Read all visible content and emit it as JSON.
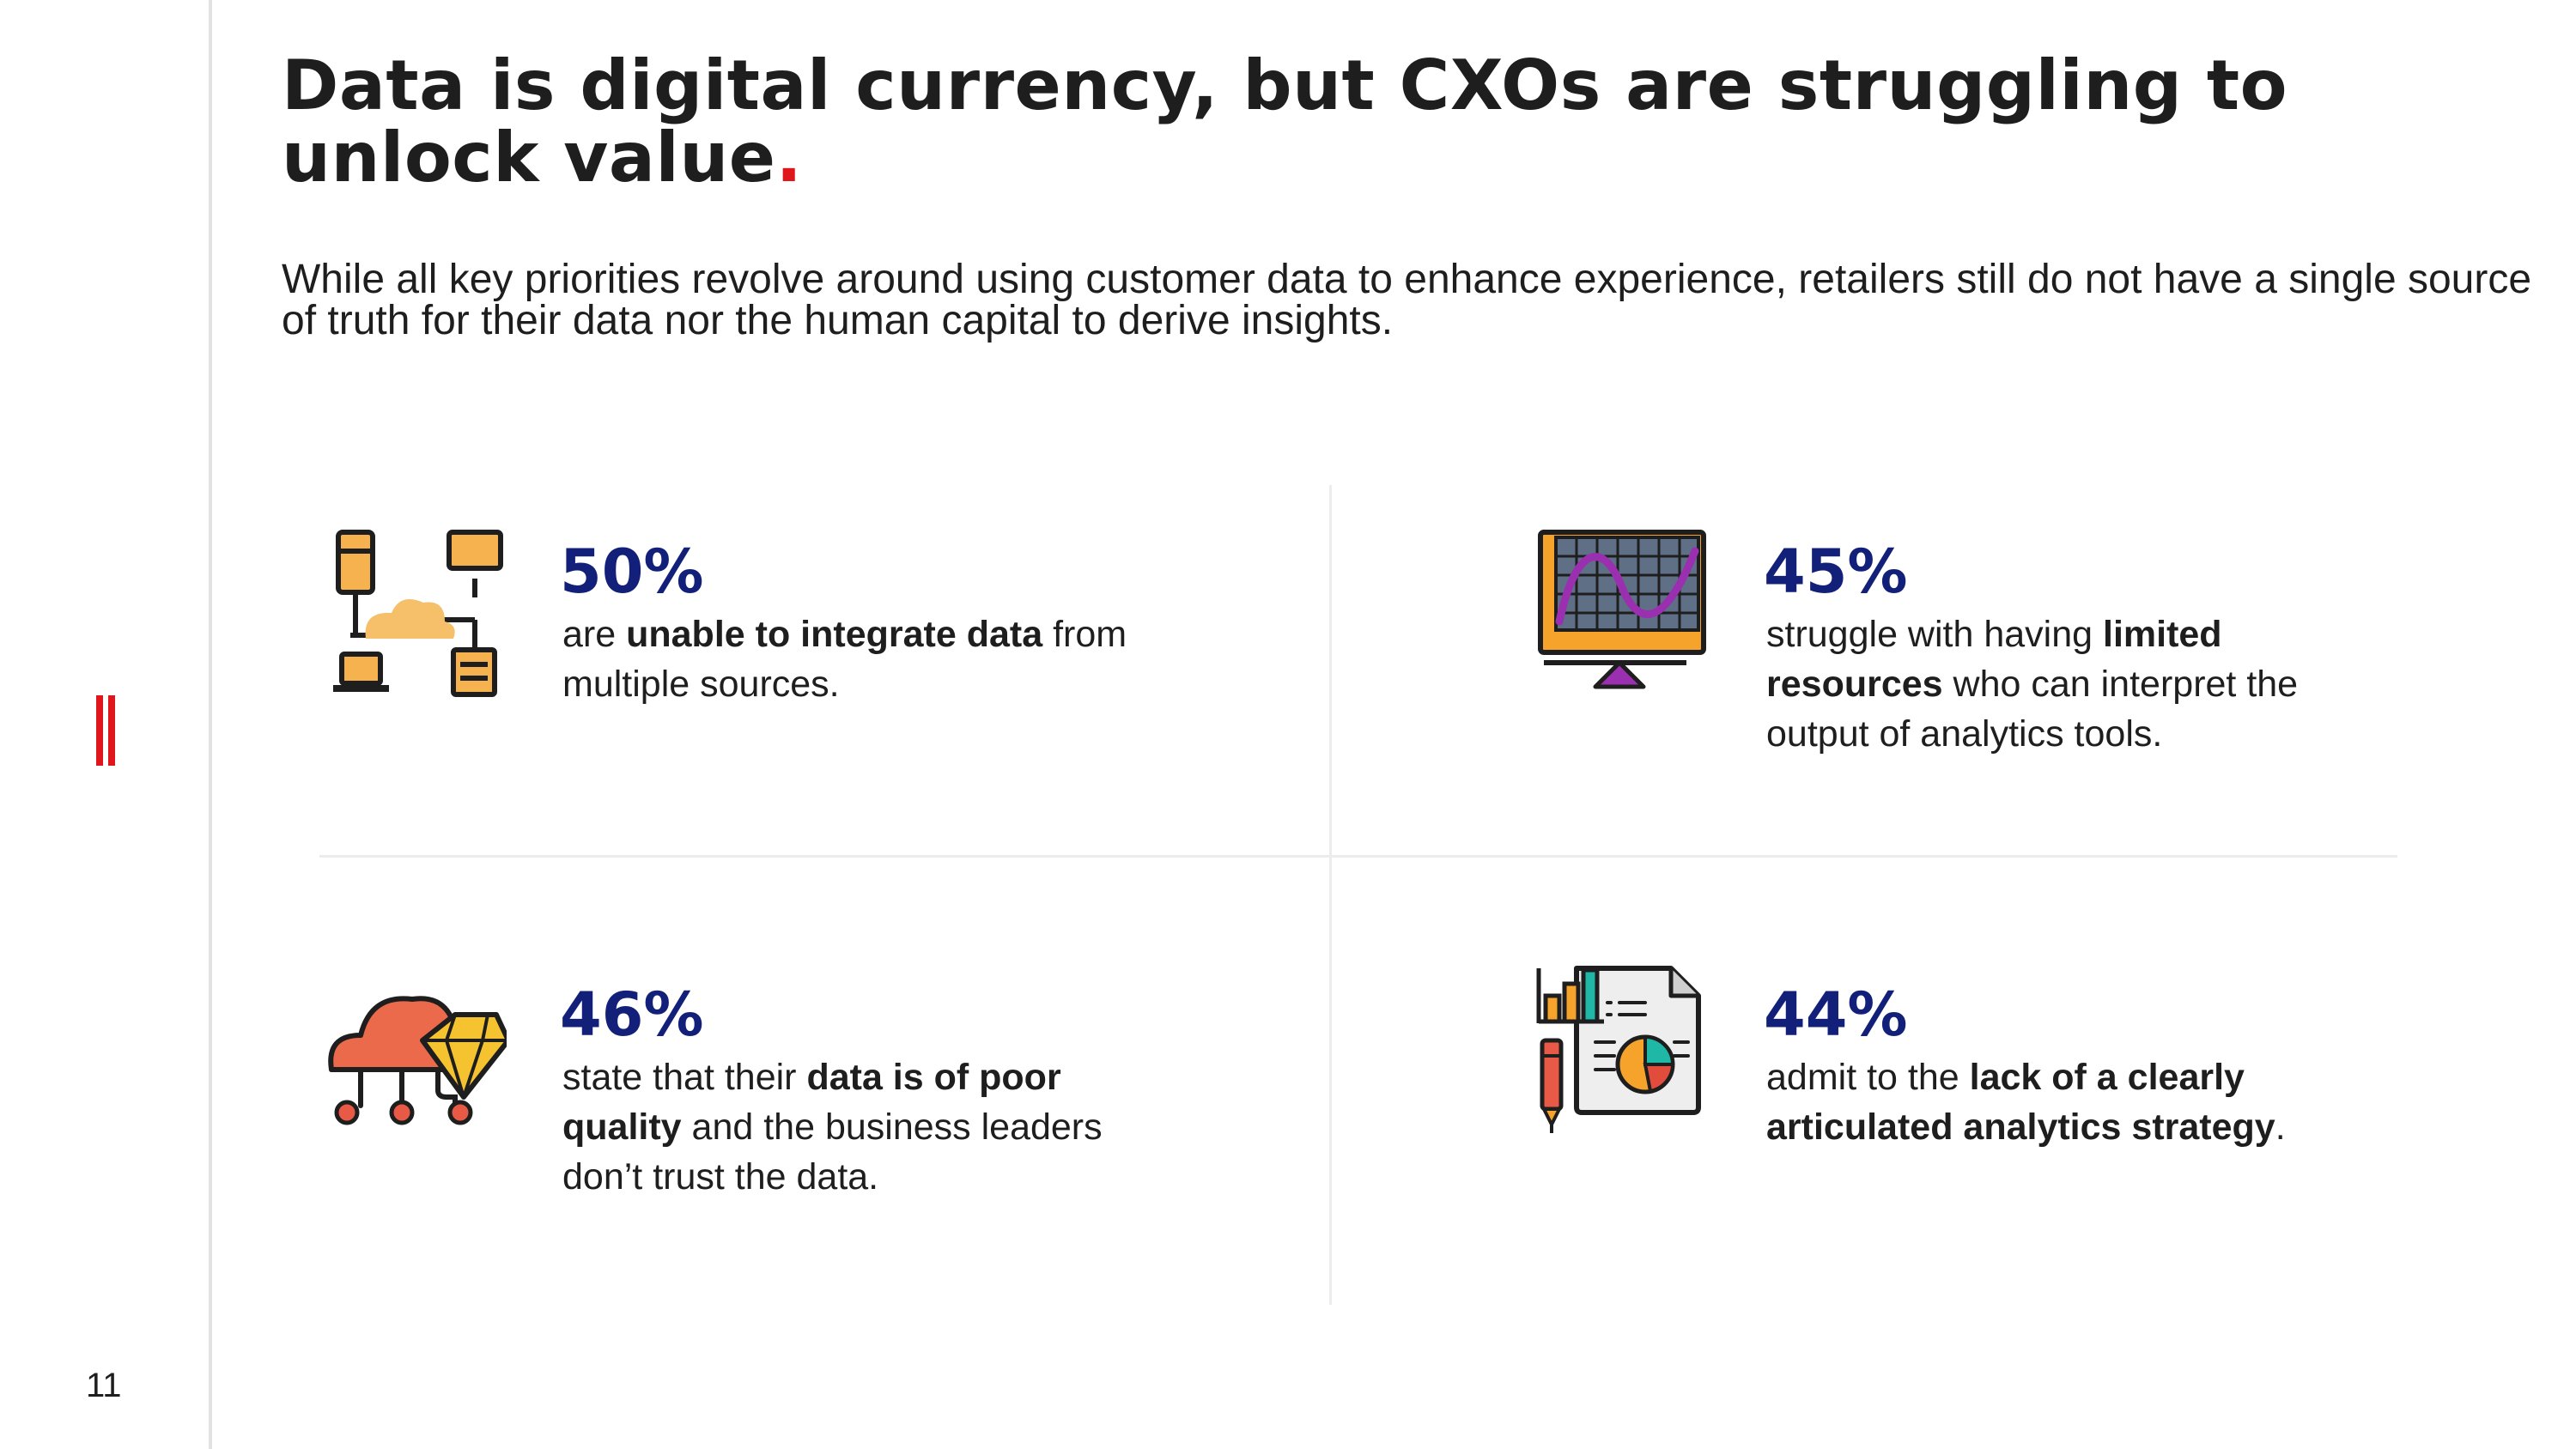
{
  "page": {
    "number": "11",
    "title": "Data is digital currency, but CXOs are struggling to unlock value",
    "title_dot": ".",
    "subtitle": "While all key priorities revolve around using customer data to enhance experience, retailers still do not have a single source of truth for their data nor the human capital to derive insights."
  },
  "colors": {
    "accent_red": "#e0161d",
    "stat_blue": "#13207a",
    "text": "#1e1e1e"
  },
  "stats": [
    {
      "value": "50%",
      "icon": "cloud-network-icon",
      "text_1": "are ",
      "bold_1": "unable to integrate data",
      "text_2": " from multiple sources."
    },
    {
      "value": "45%",
      "icon": "analytics-monitor-icon",
      "text_1": "struggle with having ",
      "bold_1": "limited resources",
      "text_2": " who can interpret the output of analytics tools."
    },
    {
      "value": "46%",
      "icon": "cloud-diamond-icon",
      "text_1": "state that their ",
      "bold_1": "data is of poor quality",
      "text_2": " and the business leaders don’t trust the data."
    },
    {
      "value": "44%",
      "icon": "report-strategy-icon",
      "text_1": "admit to the ",
      "bold_1": "lack of a clearly articulated analytics strategy",
      "text_2": "."
    }
  ]
}
